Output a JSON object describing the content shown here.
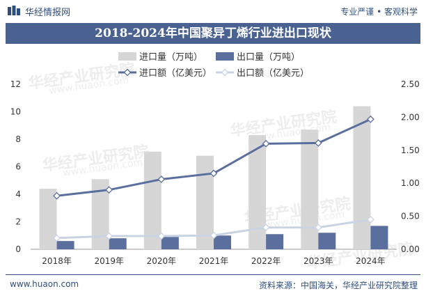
{
  "header": {
    "brand": "华经情报网",
    "tagline": "专业严谨 • 客观科学"
  },
  "watermark": {
    "text": "华经产业研究院",
    "site": "www.huaon.com"
  },
  "footer": {
    "site": "www.huaon.com",
    "source": "资料来源：中国海关，华经产业研究院整理"
  },
  "colors": {
    "brand": "#2f4d80",
    "title_bg": "#4a6291",
    "import_volume": "#d6d6d6",
    "export_volume": "#5a6f9e",
    "import_value": "#5a6f9e",
    "export_value": "#c9d3e4"
  },
  "chart_data": {
    "type": "bar",
    "title": "2018-2024年中国聚异丁烯行业进出口现状",
    "categories": [
      "2018年",
      "2019年",
      "2020年",
      "2021年",
      "2022年",
      "2023年",
      "2024年"
    ],
    "legend": [
      "进口量（万吨）",
      "出口量（万吨）",
      "进口额（亿美元）",
      "出口额（亿美元）"
    ],
    "legend_position": "top",
    "y_left": {
      "min": 0,
      "max": 12,
      "ticks": [
        0,
        2,
        4,
        6,
        8,
        10,
        12
      ]
    },
    "y_right": {
      "min": 0,
      "max": 2.5,
      "ticks": [
        "0.00",
        "0.50",
        "1.00",
        "1.50",
        "2.00",
        "2.50"
      ]
    },
    "grid": false,
    "series": [
      {
        "name": "进口量（万吨）",
        "type": "bar",
        "axis": "left",
        "values": [
          4.4,
          5.1,
          7.1,
          6.8,
          8.3,
          8.7,
          10.4
        ]
      },
      {
        "name": "出口量（万吨）",
        "type": "bar",
        "axis": "left",
        "values": [
          0.6,
          0.8,
          0.9,
          1.0,
          1.1,
          1.2,
          1.7
        ]
      },
      {
        "name": "进口额（亿美元）",
        "type": "line",
        "axis": "right",
        "values": [
          0.81,
          0.9,
          1.06,
          1.15,
          1.6,
          1.61,
          1.97
        ]
      },
      {
        "name": "出口额（亿美元）",
        "type": "line",
        "axis": "right",
        "values": [
          0.17,
          0.2,
          0.2,
          0.21,
          0.33,
          0.33,
          0.45
        ]
      }
    ]
  }
}
